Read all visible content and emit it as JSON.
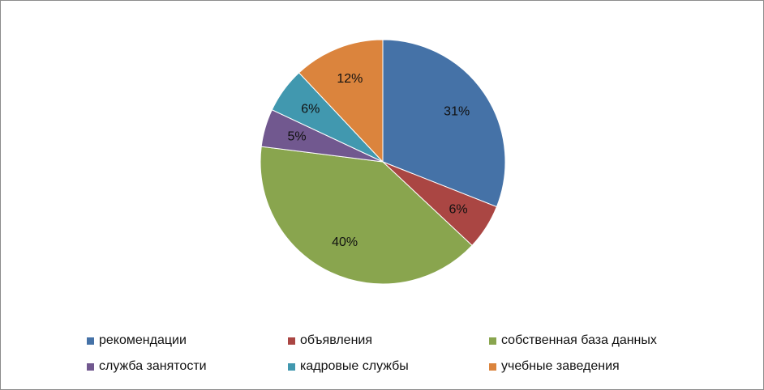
{
  "chart_data": {
    "type": "pie",
    "title": "",
    "slices": [
      {
        "label": "рекомендации",
        "value": 31,
        "display": "31%",
        "color": "#4572A7"
      },
      {
        "label": "объявления",
        "value": 6,
        "display": "6%",
        "color": "#AA4643"
      },
      {
        "label": "собственная база данных",
        "value": 40,
        "display": "40%",
        "color": "#89A54E"
      },
      {
        "label": "служба занятости",
        "value": 5,
        "display": "5%",
        "color": "#71588F"
      },
      {
        "label": "кадровые службы",
        "value": 6,
        "display": "6%",
        "color": "#4198AF"
      },
      {
        "label": "учебные заведения",
        "value": 12,
        "display": "12%",
        "color": "#DB843D"
      }
    ],
    "legend_position": "bottom"
  }
}
